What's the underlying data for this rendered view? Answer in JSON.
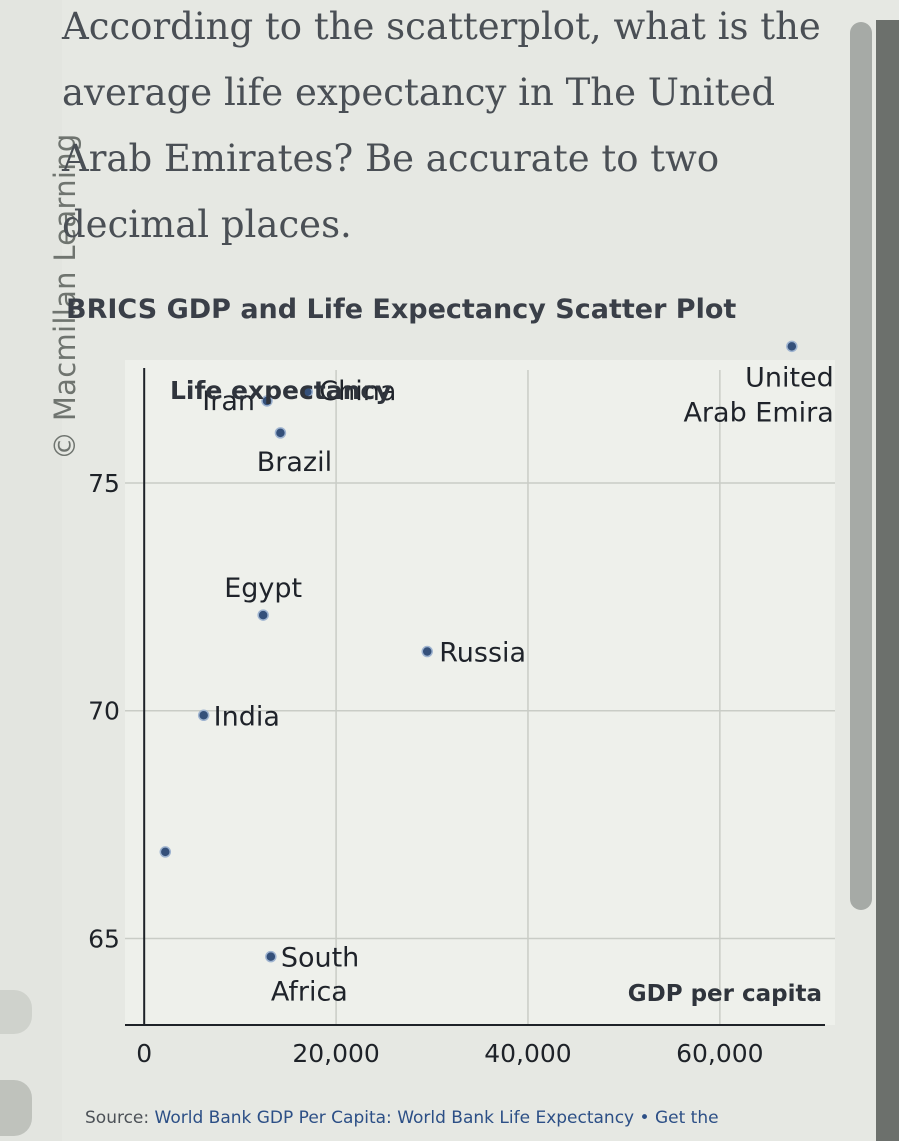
{
  "page": {
    "question": "According to the scatterplot, what is the average life expectancy in The United Arab Emirates? Be accurate to two decimal places.",
    "watermark": "© Macmillan Learning",
    "source_prefix": "Source: ",
    "source_text": "World Bank GDP Per Capita: World Bank Life Expectancy • Get the"
  },
  "chart_data": {
    "type": "scatter",
    "title": "BRICS GDP and Life Expectancy Scatter Plot",
    "ylabel": "Life expectancy",
    "xlabel": "GDP per capita",
    "xlim": [
      -2000,
      72000
    ],
    "ylim": [
      63.1,
      77.7
    ],
    "xticks": [
      0,
      20000,
      40000,
      60000
    ],
    "xtick_labels": [
      "0",
      "20,000",
      "40,000",
      "60,000"
    ],
    "yticks": [
      65,
      70,
      75
    ],
    "ytick_labels": [
      "65",
      "70",
      "75"
    ],
    "grid": true,
    "marker_color": "#34507a",
    "points": [
      {
        "label": "Iran",
        "x": 12800,
        "y": 76.8
      },
      {
        "label": "China",
        "x": 17000,
        "y": 77.0
      },
      {
        "label": "Brazil",
        "x": 14200,
        "y": 76.1
      },
      {
        "label": "Egypt",
        "x": 12400,
        "y": 72.1
      },
      {
        "label": "Russia",
        "x": 29500,
        "y": 71.3
      },
      {
        "label": "India",
        "x": 6200,
        "y": 69.9
      },
      {
        "label": "",
        "x": 2200,
        "y": 66.9
      },
      {
        "label": "South Africa",
        "x": 13200,
        "y": 64.6
      },
      {
        "label": "United Arab Emira",
        "x": 67500,
        "y": 78.0
      }
    ]
  }
}
